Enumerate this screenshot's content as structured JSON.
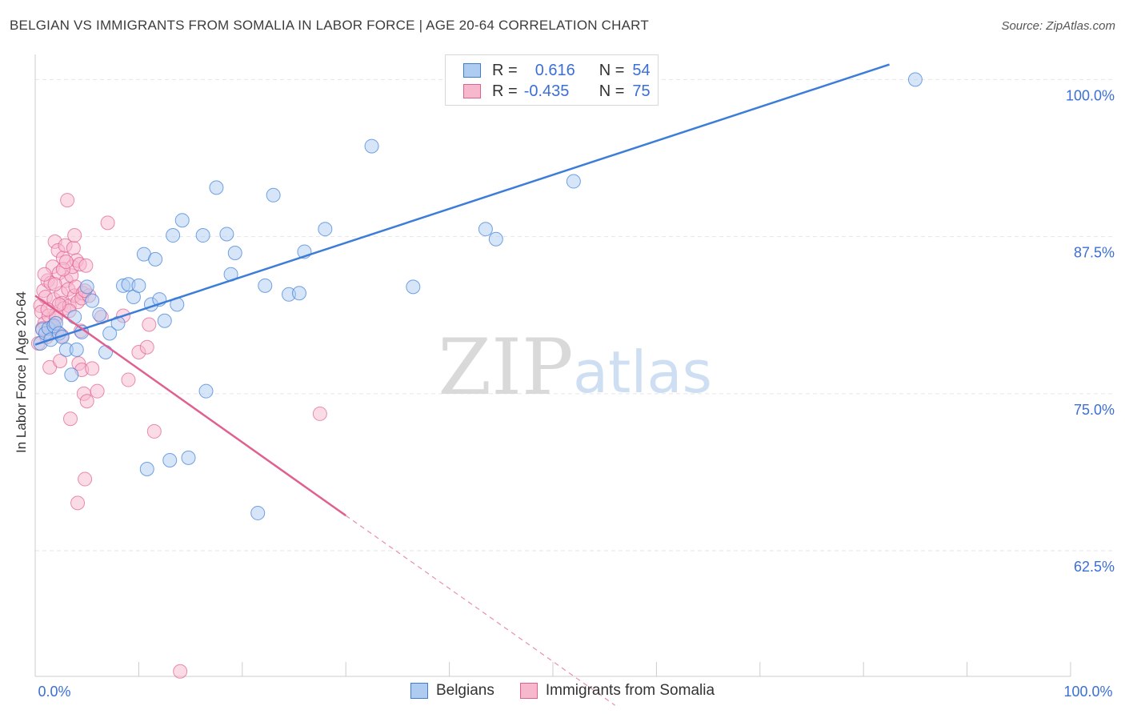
{
  "title": "BELGIAN VS IMMIGRANTS FROM SOMALIA IN LABOR FORCE | AGE 20-64 CORRELATION CHART",
  "source": "Source: ZipAtlas.com",
  "watermark": {
    "zip": "ZIP",
    "atlas": "atlas"
  },
  "legend_top": {
    "rows": [
      {
        "r_label": "R =",
        "r_value": "0.616",
        "n_label": "N =",
        "n_value": "54"
      },
      {
        "r_label": "R =",
        "r_value": "-0.435",
        "n_label": "N =",
        "n_value": "75"
      }
    ]
  },
  "legend_bottom": {
    "belgians": "Belgians",
    "somalia": "Immigrants from Somalia"
  },
  "chart_data": {
    "type": "scatter",
    "title": "BELGIAN VS IMMIGRANTS FROM SOMALIA IN LABOR FORCE | AGE 20-64 CORRELATION CHART",
    "xlabel": "",
    "ylabel": "In Labor Force | Age 20-64",
    "xlim": [
      0,
      100
    ],
    "ylim": [
      52.5,
      102
    ],
    "x_tick_labels": [
      "0.0%",
      "100.0%"
    ],
    "y_ticks": [
      62.5,
      75.0,
      87.5,
      100.0
    ],
    "y_tick_labels": [
      "62.5%",
      "75.0%",
      "87.5%",
      "100.0%"
    ],
    "colors": {
      "belgians": "#3b7dd8",
      "somalia": "#e0608f",
      "belgians_fill": "#aecbf1",
      "somalia_fill": "#f7b7cd",
      "tick_label": "#3b6fd6"
    },
    "series": [
      {
        "name": "Belgians",
        "trend": {
          "x0": 0,
          "y0": 78.9,
          "x1": 82.5,
          "y1": 101.2
        },
        "points": [
          [
            0.5,
            79.0
          ],
          [
            0.7,
            80.1
          ],
          [
            1.0,
            79.8
          ],
          [
            1.3,
            80.2
          ],
          [
            1.5,
            79.3
          ],
          [
            1.8,
            80.4
          ],
          [
            2.0,
            80.6
          ],
          [
            2.3,
            79.8
          ],
          [
            2.6,
            79.5
          ],
          [
            3.0,
            78.5
          ],
          [
            3.5,
            76.5
          ],
          [
            3.8,
            81.1
          ],
          [
            4.0,
            78.5
          ],
          [
            4.5,
            79.9
          ],
          [
            5.0,
            83.5
          ],
          [
            5.5,
            82.4
          ],
          [
            6.2,
            81.3
          ],
          [
            6.8,
            78.3
          ],
          [
            7.2,
            79.8
          ],
          [
            8.0,
            80.6
          ],
          [
            8.5,
            83.6
          ],
          [
            9.0,
            83.7
          ],
          [
            9.5,
            82.7
          ],
          [
            10.0,
            83.6
          ],
          [
            10.5,
            86.1
          ],
          [
            10.8,
            69.0
          ],
          [
            11.2,
            82.1
          ],
          [
            11.6,
            85.7
          ],
          [
            12.0,
            82.5
          ],
          [
            12.5,
            80.8
          ],
          [
            13.0,
            69.7
          ],
          [
            13.3,
            87.6
          ],
          [
            13.7,
            82.1
          ],
          [
            14.2,
            88.8
          ],
          [
            14.8,
            69.9
          ],
          [
            16.2,
            87.6
          ],
          [
            16.5,
            75.2
          ],
          [
            17.5,
            91.4
          ],
          [
            18.5,
            87.7
          ],
          [
            18.9,
            84.5
          ],
          [
            19.3,
            86.2
          ],
          [
            21.5,
            65.5
          ],
          [
            22.2,
            83.6
          ],
          [
            23.0,
            90.8
          ],
          [
            24.5,
            82.9
          ],
          [
            25.5,
            83.0
          ],
          [
            26.0,
            86.3
          ],
          [
            28.0,
            88.1
          ],
          [
            32.5,
            94.7
          ],
          [
            36.5,
            83.5
          ],
          [
            43.5,
            88.1
          ],
          [
            44.5,
            87.3
          ],
          [
            52.0,
            91.9
          ],
          [
            85.0,
            100.0
          ]
        ]
      },
      {
        "name": "Immigrants from Somalia",
        "trend": {
          "x0": 0,
          "y0": 82.8,
          "x1": 30,
          "y1": 65.3
        },
        "trend_dashed": {
          "x0": 30,
          "y0": 65.3,
          "x1": 56,
          "y1": 50.2
        },
        "points": [
          [
            0.3,
            79.0
          ],
          [
            0.5,
            82.0
          ],
          [
            0.6,
            81.5
          ],
          [
            0.8,
            83.2
          ],
          [
            0.9,
            80.6
          ],
          [
            1.0,
            82.7
          ],
          [
            1.1,
            79.5
          ],
          [
            1.2,
            84.0
          ],
          [
            1.3,
            81.2
          ],
          [
            1.4,
            77.1
          ],
          [
            1.5,
            83.8
          ],
          [
            1.6,
            80.3
          ],
          [
            1.7,
            85.1
          ],
          [
            1.8,
            82.5
          ],
          [
            1.9,
            87.1
          ],
          [
            2.0,
            81.3
          ],
          [
            2.1,
            79.9
          ],
          [
            2.2,
            86.4
          ],
          [
            2.3,
            84.6
          ],
          [
            2.4,
            77.6
          ],
          [
            2.5,
            83.0
          ],
          [
            2.6,
            82.2
          ],
          [
            2.7,
            85.8
          ],
          [
            2.8,
            81.8
          ],
          [
            2.9,
            86.8
          ],
          [
            3.0,
            84.0
          ],
          [
            3.1,
            90.4
          ],
          [
            3.2,
            83.3
          ],
          [
            3.3,
            82.0
          ],
          [
            3.4,
            73.0
          ],
          [
            3.5,
            84.4
          ],
          [
            3.6,
            85.1
          ],
          [
            3.7,
            86.6
          ],
          [
            3.8,
            82.8
          ],
          [
            3.9,
            83.5
          ],
          [
            4.0,
            85.6
          ],
          [
            4.1,
            82.3
          ],
          [
            4.2,
            77.4
          ],
          [
            4.3,
            85.3
          ],
          [
            4.4,
            80.0
          ],
          [
            4.5,
            76.9
          ],
          [
            4.6,
            83.0
          ],
          [
            4.7,
            75.0
          ],
          [
            4.8,
            68.2
          ],
          [
            4.9,
            85.2
          ],
          [
            5.0,
            74.4
          ],
          [
            4.1,
            66.3
          ],
          [
            2.0,
            81.0
          ],
          [
            1.5,
            79.8
          ],
          [
            0.9,
            84.5
          ],
          [
            2.7,
            84.9
          ],
          [
            3.3,
            81.6
          ],
          [
            5.5,
            77.0
          ],
          [
            6.0,
            75.2
          ],
          [
            6.4,
            81.1
          ],
          [
            7.0,
            88.6
          ],
          [
            8.5,
            81.2
          ],
          [
            9.0,
            76.1
          ],
          [
            10.0,
            78.3
          ],
          [
            10.8,
            78.7
          ],
          [
            11.0,
            80.5
          ],
          [
            11.5,
            72.0
          ],
          [
            14.0,
            52.9
          ],
          [
            27.5,
            73.4
          ],
          [
            3.8,
            87.6
          ],
          [
            4.5,
            82.6
          ],
          [
            2.3,
            82.1
          ],
          [
            1.8,
            80.4
          ],
          [
            1.2,
            81.7
          ],
          [
            0.7,
            80.2
          ],
          [
            5.2,
            82.8
          ],
          [
            3.0,
            85.5
          ],
          [
            2.6,
            79.6
          ],
          [
            1.9,
            83.7
          ],
          [
            4.8,
            83.2
          ]
        ]
      }
    ]
  }
}
